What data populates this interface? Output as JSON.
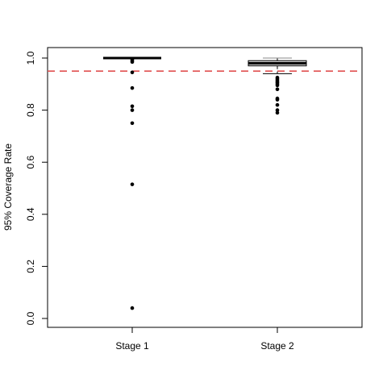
{
  "chart_data": {
    "type": "boxplot",
    "title": "",
    "xlabel": "",
    "ylabel": "95% Coverage Rate",
    "ylim": [
      -0.04,
      1.04
    ],
    "yticks": [
      0.0,
      0.2,
      0.4,
      0.6,
      0.8,
      1.0
    ],
    "ytick_labels": [
      "0.0",
      "0.2",
      "0.4",
      "0.6",
      "0.8",
      "1.0"
    ],
    "categories": [
      "Stage 1",
      "Stage 2"
    ],
    "reference_line": {
      "y": 0.95,
      "style": "dashed",
      "color": "#e05050"
    },
    "boxes": [
      {
        "category": "Stage 1",
        "whisker_low": 1.0,
        "q1": 1.0,
        "median": 1.0,
        "q3": 1.0,
        "whisker_high": 1.0,
        "outliers": [
          0.995,
          0.99,
          0.985,
          0.945,
          0.885,
          0.815,
          0.8,
          0.75,
          0.515,
          0.04
        ]
      },
      {
        "category": "Stage 2",
        "whisker_low": 0.94,
        "q1": 0.97,
        "median": 0.98,
        "q3": 0.99,
        "whisker_high": 1.0,
        "outliers": [
          0.925,
          0.92,
          0.915,
          0.91,
          0.905,
          0.9,
          0.895,
          0.88,
          0.845,
          0.84,
          0.82,
          0.8,
          0.79
        ]
      }
    ],
    "colors": {
      "box_fill": "#d3d3d3",
      "line": "#000000",
      "whisker_cap": "#888888"
    }
  }
}
